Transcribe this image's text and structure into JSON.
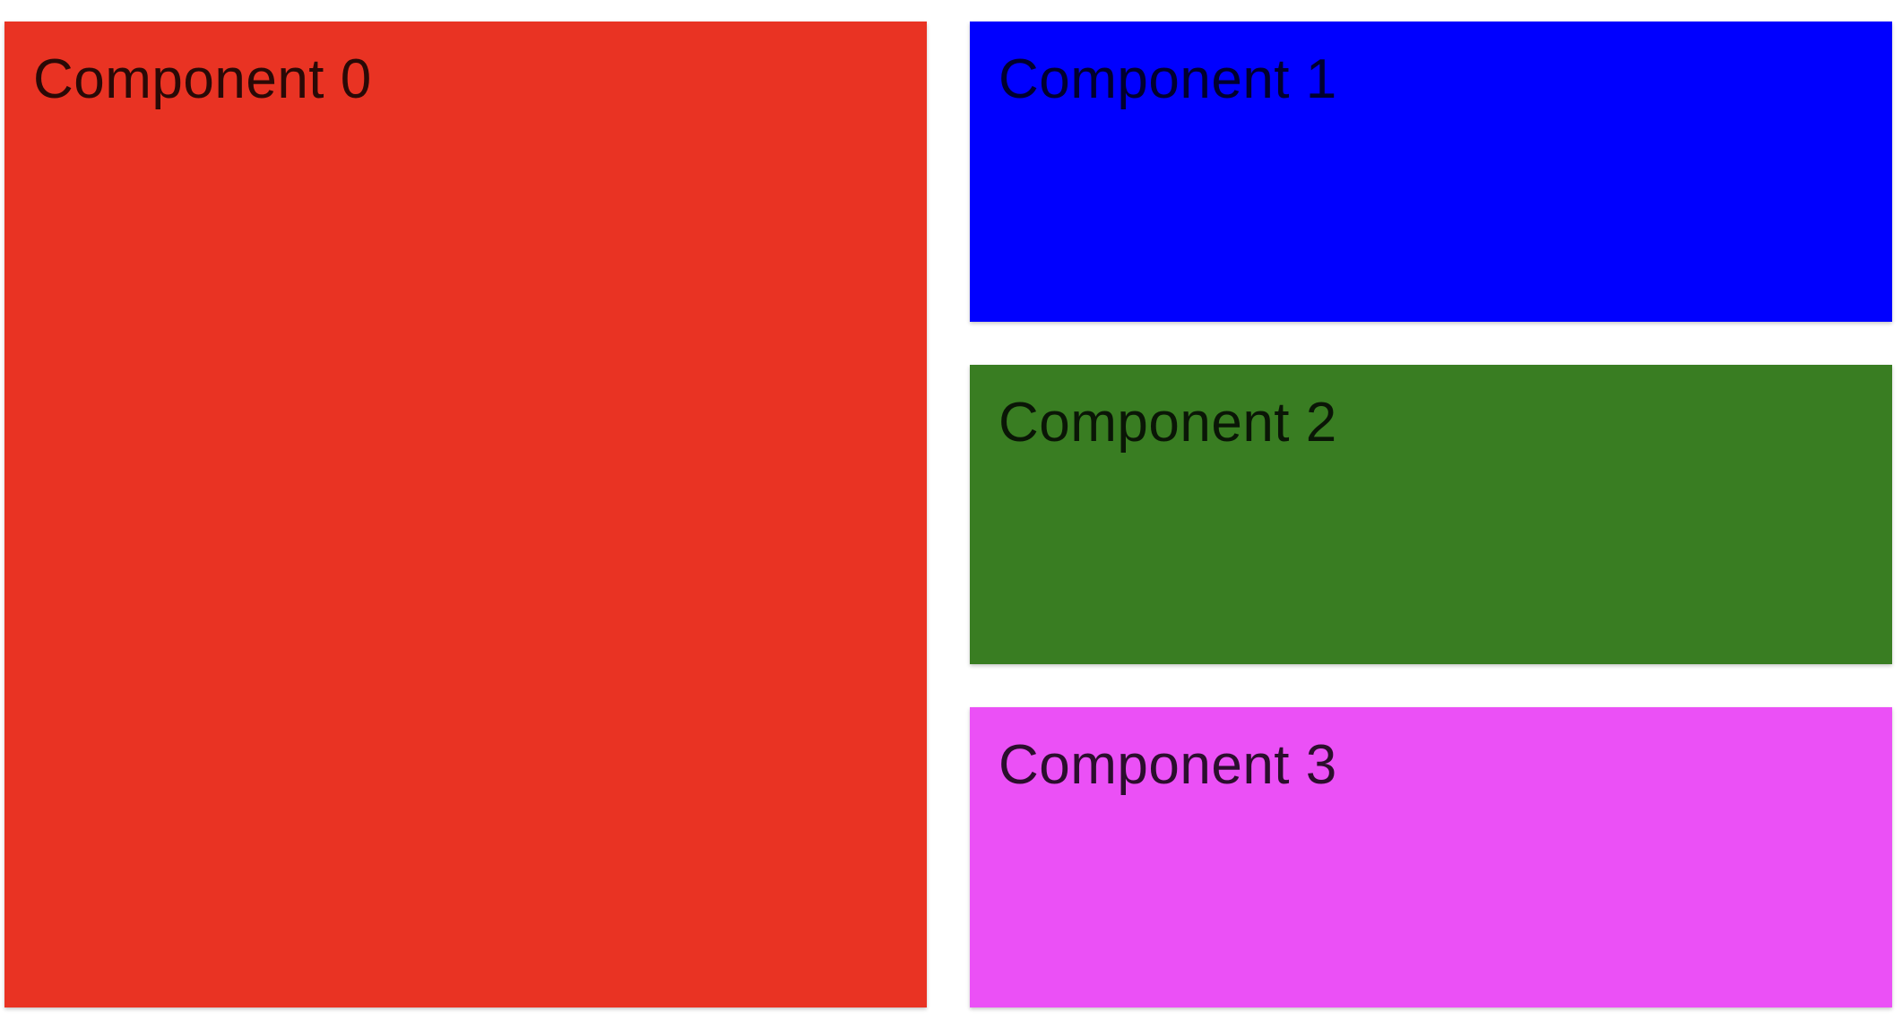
{
  "components": [
    {
      "label": "Component 0",
      "color": "#e93323"
    },
    {
      "label": "Component 1",
      "color": "#0000ff"
    },
    {
      "label": "Component 2",
      "color": "#397d22"
    },
    {
      "label": "Component 3",
      "color": "#eb50f6"
    }
  ]
}
